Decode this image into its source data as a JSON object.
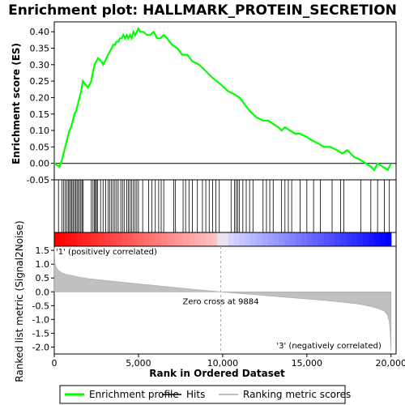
{
  "chart_data": {
    "type": "line",
    "title": "Enrichment plot: HALLMARK_PROTEIN_SECRETION",
    "xlabel": "Rank in Ordered Dataset",
    "x_ticks": [
      "0",
      "5,000",
      "10,000",
      "15,000",
      "20,000"
    ],
    "x_tick_values": [
      0,
      5000,
      10000,
      15000,
      20000
    ],
    "xlim": [
      0,
      20300
    ],
    "top_panel": {
      "ylabel": "Enrichment score (ES)",
      "ylim": [
        -0.05,
        0.43
      ],
      "y_ticks": [
        "-0.05",
        "0.00",
        "0.05",
        "0.10",
        "0.15",
        "0.20",
        "0.25",
        "0.30",
        "0.35",
        "0.40"
      ],
      "y_tick_values": [
        -0.05,
        0.0,
        0.05,
        0.1,
        0.15,
        0.2,
        0.25,
        0.3,
        0.35,
        0.4
      ],
      "series": [
        {
          "name": "Enrichment profile",
          "color": "#00ff00",
          "x": [
            0,
            300,
            450,
            600,
            700,
            800,
            900,
            1000,
            1100,
            1200,
            1300,
            1400,
            1500,
            1600,
            1700,
            2000,
            2200,
            2300,
            2400,
            2500,
            2600,
            2800,
            2900,
            3000,
            3100,
            3200,
            3300,
            3400,
            3500,
            3600,
            3700,
            3800,
            3900,
            4000,
            4100,
            4200,
            4300,
            4400,
            4500,
            4600,
            4700,
            4800,
            4900,
            5000,
            5100,
            5300,
            5500,
            5700,
            5900,
            6100,
            6300,
            6500,
            6700,
            7000,
            7300,
            7600,
            7900,
            8200,
            8600,
            9000,
            9400,
            9884,
            10300,
            10700,
            11000,
            11300,
            11600,
            12000,
            12400,
            12700,
            13000,
            13300,
            13500,
            13700,
            14000,
            14300,
            14600,
            15000,
            15300,
            15700,
            16000,
            16400,
            16800,
            17100,
            17400,
            17800,
            18200,
            18500,
            18800,
            19000,
            19200,
            19500,
            19800,
            20000
          ],
          "y": [
            0.0,
            -0.01,
            0.01,
            0.04,
            0.06,
            0.08,
            0.1,
            0.11,
            0.13,
            0.15,
            0.16,
            0.18,
            0.2,
            0.22,
            0.25,
            0.23,
            0.25,
            0.28,
            0.3,
            0.31,
            0.32,
            0.31,
            0.3,
            0.31,
            0.32,
            0.33,
            0.34,
            0.35,
            0.36,
            0.36,
            0.37,
            0.37,
            0.38,
            0.38,
            0.39,
            0.38,
            0.39,
            0.38,
            0.39,
            0.38,
            0.4,
            0.39,
            0.4,
            0.41,
            0.4,
            0.4,
            0.39,
            0.39,
            0.4,
            0.38,
            0.38,
            0.39,
            0.38,
            0.36,
            0.35,
            0.33,
            0.33,
            0.31,
            0.3,
            0.28,
            0.26,
            0.24,
            0.22,
            0.21,
            0.2,
            0.18,
            0.16,
            0.14,
            0.13,
            0.13,
            0.12,
            0.11,
            0.1,
            0.11,
            0.1,
            0.09,
            0.09,
            0.08,
            0.07,
            0.06,
            0.05,
            0.05,
            0.04,
            0.03,
            0.04,
            0.02,
            0.01,
            0.0,
            -0.01,
            -0.02,
            0.0,
            -0.01,
            -0.02,
            0.0
          ]
        }
      ],
      "hits": [
        250,
        450,
        560,
        650,
        740,
        830,
        900,
        980,
        1050,
        1120,
        1200,
        1280,
        1350,
        1420,
        1500,
        1580,
        1650,
        1720,
        2200,
        2300,
        2380,
        2450,
        2500,
        2580,
        2750,
        2900,
        3050,
        3200,
        3300,
        3400,
        3500,
        3600,
        3700,
        3800,
        3950,
        4050,
        4150,
        4300,
        4400,
        4500,
        4600,
        4700,
        4800,
        4900,
        5000,
        5250,
        5600,
        5800,
        6000,
        6200,
        6350,
        6500,
        7100,
        7200,
        7650,
        7800,
        8000,
        8200,
        8500,
        8800,
        9000,
        9200,
        9400,
        9600,
        9800,
        10500,
        10700,
        10800,
        10900,
        11000,
        11200,
        11400,
        11600,
        11800,
        12400,
        12600,
        12800,
        13000,
        13500,
        13700,
        13900,
        14100,
        14600,
        15000,
        15400,
        15800,
        16500,
        17000,
        17200,
        18200,
        18800,
        19200,
        19600,
        19900
      ]
    },
    "bottom_panel": {
      "ylabel": "Ranked list metric (Signal2Noise)",
      "ylim": [
        -2.25,
        1.65
      ],
      "y_ticks": [
        "-2.0",
        "-1.5",
        "-1.0",
        "-0.5",
        "0.0",
        "0.5",
        "1.0",
        "1.5"
      ],
      "y_tick_values": [
        -2.0,
        -1.5,
        -1.0,
        -0.5,
        0.0,
        0.5,
        1.0,
        1.5
      ],
      "series": [
        {
          "name": "Ranking metric scores",
          "color": "#c0c0c0",
          "x": [
            0,
            50,
            150,
            300,
            500,
            800,
            1200,
            1600,
            2000,
            2600,
            3200,
            4000,
            5000,
            6000,
            7000,
            8000,
            9000,
            9884,
            11000,
            12000,
            13000,
            14000,
            15000,
            16000,
            17000,
            17800,
            18400,
            18900,
            19300,
            19600,
            19800,
            19900,
            19960,
            20000
          ],
          "y": [
            1.6,
            1.0,
            0.85,
            0.75,
            0.68,
            0.62,
            0.57,
            0.52,
            0.48,
            0.44,
            0.4,
            0.35,
            0.29,
            0.23,
            0.17,
            0.11,
            0.05,
            0.0,
            -0.06,
            -0.11,
            -0.16,
            -0.21,
            -0.26,
            -0.31,
            -0.37,
            -0.42,
            -0.48,
            -0.55,
            -0.62,
            -0.7,
            -0.85,
            -1.1,
            -1.6,
            -2.15
          ]
        }
      ],
      "zero_cross_label": "Zero cross at 9884",
      "zero_cross_rank": 9884,
      "positive_label": "'1' (positively correlated)",
      "negative_label": "'3' (negatively correlated)"
    },
    "legend": {
      "placement": "bottom",
      "entries": [
        {
          "label": "Enrichment profile",
          "color": "#00ff00"
        },
        {
          "label": "Hits",
          "color": "#000000"
        },
        {
          "label": "Ranking metric scores",
          "color": "#c0c0c0"
        }
      ]
    },
    "grid": false,
    "colors": {
      "positive_label": "#ff0000",
      "negative_label": "#0000ff",
      "heat_red": "#ff0000",
      "heat_blue": "#0000ff"
    }
  }
}
